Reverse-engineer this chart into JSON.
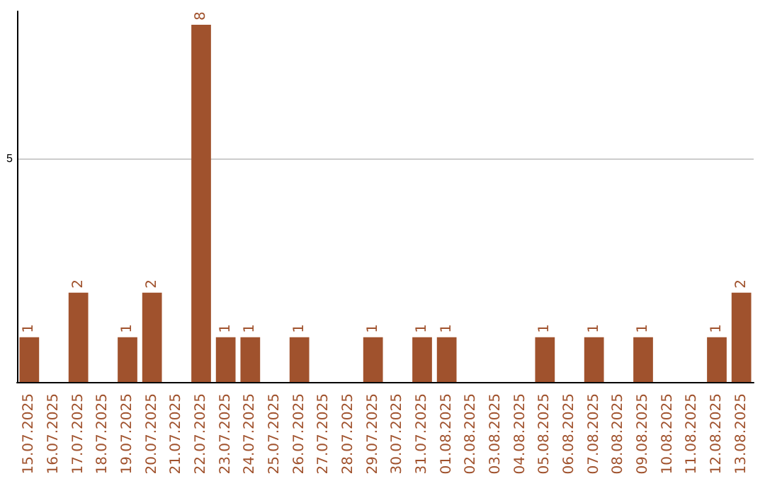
{
  "chart_data": {
    "type": "bar",
    "categories": [
      "15.07.2025",
      "16.07.2025",
      "17.07.2025",
      "18.07.2025",
      "19.07.2025",
      "20.07.2025",
      "21.07.2025",
      "22.07.2025",
      "23.07.2025",
      "24.07.2025",
      "25.07.2025",
      "26.07.2025",
      "27.07.2025",
      "28.07.2025",
      "29.07.2025",
      "30.07.2025",
      "31.07.2025",
      "01.08.2025",
      "02.08.2025",
      "03.08.2025",
      "04.08.2025",
      "05.08.2025",
      "06.08.2025",
      "07.08.2025",
      "08.08.2025",
      "09.08.2025",
      "10.08.2025",
      "11.08.2025",
      "12.08.2025",
      "13.08.2025"
    ],
    "values": [
      1,
      null,
      2,
      null,
      1,
      2,
      null,
      8,
      1,
      1,
      null,
      1,
      null,
      null,
      1,
      null,
      1,
      1,
      null,
      null,
      null,
      1,
      null,
      1,
      null,
      1,
      null,
      null,
      1,
      2
    ],
    "color": "#a0522d",
    "ylim": [
      0,
      8.3
    ],
    "yticks": [
      5
    ],
    "grid": "y",
    "data_labels": true
  }
}
